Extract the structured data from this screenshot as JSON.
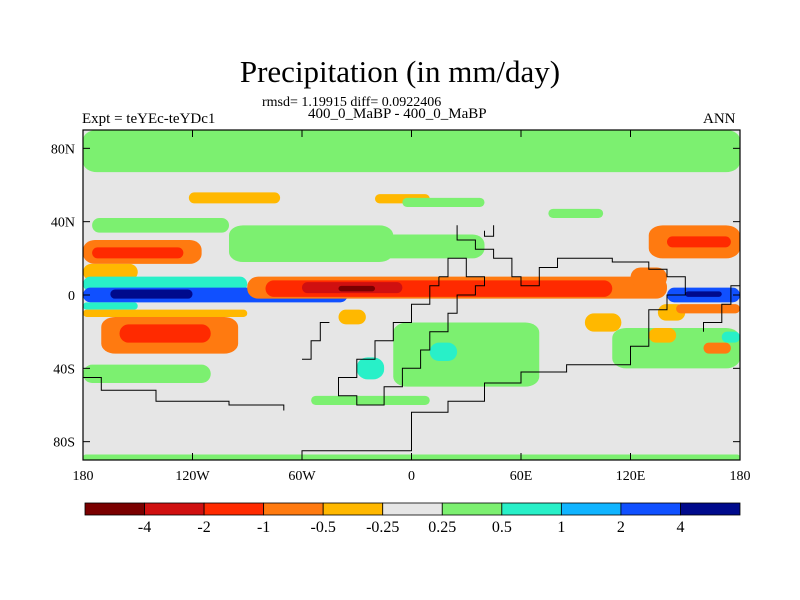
{
  "header": {
    "title": "Precipitation (in mm/day)",
    "stats": "rmsd= 1.19915 diff= 0.0922406",
    "subtitle": "400_0_MaBP - 400_0_MaBP",
    "experiment": "Expt = teYEc-teYDc1",
    "season": "ANN"
  },
  "chart_data": {
    "type": "heatmap",
    "title": "Precipitation (in mm/day)",
    "variable": "precipitation difference",
    "units": "mm/day",
    "xlim": [
      -180,
      180
    ],
    "ylim": [
      -90,
      90
    ],
    "x_ticks": [
      {
        "value": -180,
        "label": "180"
      },
      {
        "value": -120,
        "label": "120W"
      },
      {
        "value": -60,
        "label": "60W"
      },
      {
        "value": 0,
        "label": "0"
      },
      {
        "value": 60,
        "label": "60E"
      },
      {
        "value": 120,
        "label": "120E"
      },
      {
        "value": 180,
        "label": "180"
      }
    ],
    "y_ticks": [
      {
        "value": 80,
        "label": "80N"
      },
      {
        "value": 40,
        "label": "40N"
      },
      {
        "value": 0,
        "label": "0"
      },
      {
        "value": -40,
        "label": "40S"
      },
      {
        "value": -80,
        "label": "80S"
      }
    ],
    "colorbar": {
      "colors": [
        "#7a0000",
        "#d01010",
        "#ff2a00",
        "#ff7a10",
        "#ffb800",
        "#e6e6e6",
        "#7cf070",
        "#28f0c8",
        "#10b4ff",
        "#1050ff",
        "#000a8c"
      ],
      "labels": [
        "-4",
        "-2",
        "-1",
        "-0.5",
        "-0.25",
        "0.25",
        "0.5",
        "1",
        "2",
        "4"
      ]
    },
    "background_level": 5,
    "regions": [
      {
        "level": 6,
        "lon": [
          -180,
          180
        ],
        "lat": [
          67,
          90
        ]
      },
      {
        "level": 6,
        "lon": [
          -180,
          180
        ],
        "lat": [
          -90,
          -87
        ]
      },
      {
        "level": 4,
        "lon": [
          -122,
          -72
        ],
        "lat": [
          50,
          56
        ]
      },
      {
        "level": 4,
        "lon": [
          -20,
          10
        ],
        "lat": [
          50,
          55
        ]
      },
      {
        "level": 6,
        "lon": [
          -5,
          40
        ],
        "lat": [
          48,
          53
        ]
      },
      {
        "level": 6,
        "lon": [
          75,
          105
        ],
        "lat": [
          42,
          47
        ]
      },
      {
        "level": 6,
        "lon": [
          -175,
          -100
        ],
        "lat": [
          34,
          42
        ]
      },
      {
        "level": 6,
        "lon": [
          -100,
          -10
        ],
        "lat": [
          18,
          38
        ]
      },
      {
        "level": 6,
        "lon": [
          -40,
          40
        ],
        "lat": [
          20,
          33
        ]
      },
      {
        "level": 6,
        "lon": [
          -10,
          70
        ],
        "lat": [
          -50,
          -15
        ]
      },
      {
        "level": 6,
        "lon": [
          -180,
          -110
        ],
        "lat": [
          -48,
          -38
        ]
      },
      {
        "level": 6,
        "lon": [
          -55,
          10
        ],
        "lat": [
          -60,
          -55
        ]
      },
      {
        "level": 6,
        "lon": [
          110,
          180
        ],
        "lat": [
          -40,
          -18
        ]
      },
      {
        "level": 3,
        "lon": [
          -180,
          -115
        ],
        "lat": [
          17,
          30
        ]
      },
      {
        "level": 2,
        "lon": [
          -175,
          -125
        ],
        "lat": [
          20,
          26
        ]
      },
      {
        "level": 4,
        "lon": [
          -180,
          -150
        ],
        "lat": [
          8,
          17
        ]
      },
      {
        "level": 7,
        "lon": [
          -180,
          -90
        ],
        "lat": [
          2,
          10
        ]
      },
      {
        "level": 9,
        "lon": [
          -180,
          -35
        ],
        "lat": [
          -4,
          4
        ]
      },
      {
        "level": 10,
        "lon": [
          -165,
          -120
        ],
        "lat": [
          -2,
          3
        ]
      },
      {
        "level": 7,
        "lon": [
          -180,
          -150
        ],
        "lat": [
          -8,
          -4
        ]
      },
      {
        "level": 4,
        "lon": [
          -180,
          -90
        ],
        "lat": [
          -12,
          -8
        ]
      },
      {
        "level": 3,
        "lon": [
          -170,
          -95
        ],
        "lat": [
          -32,
          -12
        ]
      },
      {
        "level": 2,
        "lon": [
          -160,
          -110
        ],
        "lat": [
          -26,
          -16
        ]
      },
      {
        "level": 3,
        "lon": [
          -90,
          140
        ],
        "lat": [
          -2,
          10
        ]
      },
      {
        "level": 2,
        "lon": [
          -80,
          110
        ],
        "lat": [
          -1,
          8
        ]
      },
      {
        "level": 1,
        "lon": [
          -60,
          -5
        ],
        "lat": [
          1,
          7
        ]
      },
      {
        "level": 0,
        "lon": [
          -40,
          -20
        ],
        "lat": [
          2,
          5
        ]
      },
      {
        "level": 4,
        "lon": [
          -40,
          -25
        ],
        "lat": [
          -16,
          -8
        ]
      },
      {
        "level": 4,
        "lon": [
          95,
          115
        ],
        "lat": [
          -20,
          -10
        ]
      },
      {
        "level": 4,
        "lon": [
          130,
          145
        ],
        "lat": [
          -26,
          -18
        ]
      },
      {
        "level": 7,
        "lon": [
          -30,
          -15
        ],
        "lat": [
          -46,
          -34
        ]
      },
      {
        "level": 7,
        "lon": [
          10,
          25
        ],
        "lat": [
          -36,
          -26
        ]
      },
      {
        "level": 3,
        "lon": [
          130,
          180
        ],
        "lat": [
          20,
          38
        ]
      },
      {
        "level": 2,
        "lon": [
          140,
          175
        ],
        "lat": [
          26,
          32
        ]
      },
      {
        "level": 3,
        "lon": [
          120,
          140
        ],
        "lat": [
          4,
          15
        ]
      },
      {
        "level": 9,
        "lon": [
          140,
          180
        ],
        "lat": [
          -4,
          4
        ]
      },
      {
        "level": 10,
        "lon": [
          150,
          170
        ],
        "lat": [
          -1,
          2
        ]
      },
      {
        "level": 4,
        "lon": [
          135,
          150
        ],
        "lat": [
          -14,
          -5
        ]
      },
      {
        "level": 3,
        "lon": [
          145,
          180
        ],
        "lat": [
          -10,
          -5
        ]
      },
      {
        "level": 7,
        "lon": [
          170,
          180
        ],
        "lat": [
          -26,
          -20
        ]
      },
      {
        "level": 3,
        "lon": [
          160,
          175
        ],
        "lat": [
          -32,
          -26
        ]
      }
    ],
    "coastlines": [
      [
        [
          -60,
          -95
        ],
        [
          -60,
          -85
        ],
        [
          0,
          -85
        ],
        [
          0,
          -64
        ],
        [
          20,
          -64
        ],
        [
          20,
          -58
        ],
        [
          40,
          -58
        ],
        [
          40,
          -48
        ],
        [
          60,
          -48
        ],
        [
          60,
          -42
        ],
        [
          85,
          -42
        ],
        [
          85,
          -38
        ],
        [
          120,
          -38
        ],
        [
          120,
          -28
        ],
        [
          130,
          -28
        ],
        [
          130,
          -8
        ],
        [
          140,
          -8
        ],
        [
          140,
          0
        ],
        [
          150,
          0
        ],
        [
          150,
          2
        ]
      ],
      [
        [
          15,
          10
        ],
        [
          15,
          5
        ],
        [
          10,
          5
        ],
        [
          10,
          -5
        ],
        [
          0,
          -5
        ],
        [
          0,
          -15
        ],
        [
          -10,
          -15
        ],
        [
          -10,
          -25
        ],
        [
          -20,
          -25
        ],
        [
          -20,
          -35
        ],
        [
          -30,
          -35
        ],
        [
          -30,
          -45
        ],
        [
          -40,
          -45
        ],
        [
          -40,
          -55
        ],
        [
          -30,
          -55
        ],
        [
          -30,
          -60
        ],
        [
          -15,
          -60
        ],
        [
          -15,
          -50
        ],
        [
          -5,
          -50
        ],
        [
          -5,
          -40
        ],
        [
          5,
          -40
        ],
        [
          5,
          -30
        ],
        [
          10,
          -30
        ],
        [
          10,
          -20
        ],
        [
          20,
          -20
        ],
        [
          20,
          -10
        ],
        [
          25,
          -10
        ],
        [
          25,
          0
        ],
        [
          35,
          0
        ],
        [
          35,
          5
        ],
        [
          40,
          5
        ],
        [
          40,
          10
        ],
        [
          30,
          10
        ],
        [
          30,
          20
        ],
        [
          20,
          20
        ],
        [
          20,
          10
        ],
        [
          15,
          10
        ]
      ],
      [
        [
          25,
          38
        ],
        [
          25,
          30
        ],
        [
          35,
          30
        ],
        [
          35,
          25
        ],
        [
          45,
          25
        ],
        [
          45,
          20
        ],
        [
          55,
          20
        ],
        [
          55,
          10
        ],
        [
          60,
          10
        ],
        [
          60,
          5
        ],
        [
          70,
          5
        ],
        [
          70,
          15
        ],
        [
          80,
          15
        ],
        [
          80,
          20
        ],
        [
          110,
          20
        ],
        [
          110,
          18
        ],
        [
          130,
          18
        ],
        [
          130,
          14
        ],
        [
          140,
          14
        ],
        [
          140,
          10
        ],
        [
          150,
          10
        ],
        [
          150,
          2
        ]
      ],
      [
        [
          -180,
          -45
        ],
        [
          -170,
          -45
        ],
        [
          -170,
          -52
        ],
        [
          -140,
          -52
        ],
        [
          -140,
          -58
        ],
        [
          -100,
          -58
        ],
        [
          -100,
          -60
        ],
        [
          -70,
          -60
        ],
        [
          -70,
          -63
        ]
      ],
      [
        [
          160,
          -20
        ],
        [
          160,
          -15
        ],
        [
          170,
          -15
        ],
        [
          170,
          -5
        ],
        [
          175,
          -5
        ],
        [
          175,
          5
        ],
        [
          180,
          5
        ]
      ],
      [
        [
          40,
          35
        ],
        [
          40,
          32
        ],
        [
          45,
          32
        ],
        [
          45,
          38
        ]
      ],
      [
        [
          -60,
          -35
        ],
        [
          -55,
          -35
        ],
        [
          -55,
          -25
        ],
        [
          -50,
          -25
        ],
        [
          -50,
          -15
        ],
        [
          -45,
          -15
        ]
      ]
    ]
  }
}
